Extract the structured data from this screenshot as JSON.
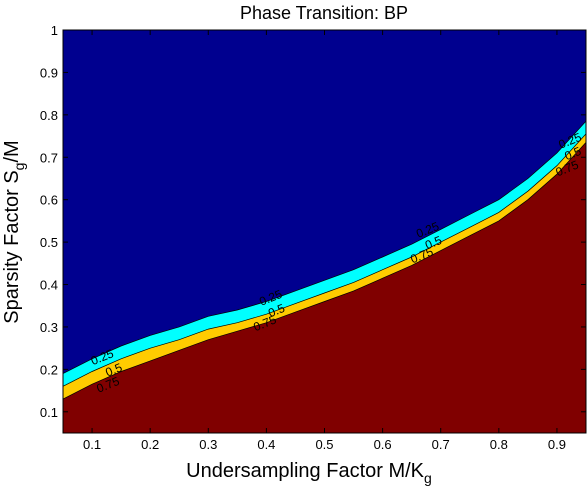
{
  "chart_data": {
    "type": "contour",
    "title": "Phase Transition: BP",
    "xlabel": "Undersampling Factor M/K",
    "xlabel_subscript": "g",
    "ylabel_prefix": "Sparsity Factor S",
    "ylabel_subscript": "g",
    "ylabel_suffix": "/M",
    "xlim": [
      0.05,
      0.95
    ],
    "ylim": [
      0.05,
      1.0
    ],
    "xticks": [
      0.1,
      0.2,
      0.3,
      0.4,
      0.5,
      0.6,
      0.7,
      0.8,
      0.9
    ],
    "yticks": [
      0.1,
      0.2,
      0.3,
      0.4,
      0.5,
      0.6,
      0.7,
      0.8,
      0.9,
      1
    ],
    "grid": false,
    "levels": [
      {
        "label": "0.25",
        "color": "#00ffff"
      },
      {
        "label": "0.5",
        "color": "#ffcc00"
      },
      {
        "label": "0.75",
        "color": "#800000"
      }
    ],
    "background_color": "#00008f",
    "contours": [
      {
        "level": "0.25",
        "x": [
          0.05,
          0.1,
          0.15,
          0.2,
          0.25,
          0.3,
          0.35,
          0.4,
          0.45,
          0.5,
          0.55,
          0.6,
          0.65,
          0.7,
          0.75,
          0.8,
          0.85,
          0.9,
          0.95
        ],
        "y": [
          0.19,
          0.225,
          0.255,
          0.28,
          0.3,
          0.325,
          0.34,
          0.36,
          0.385,
          0.41,
          0.435,
          0.465,
          0.495,
          0.53,
          0.565,
          0.6,
          0.65,
          0.71,
          0.785
        ]
      },
      {
        "level": "0.5",
        "x": [
          0.05,
          0.1,
          0.15,
          0.2,
          0.25,
          0.3,
          0.35,
          0.4,
          0.45,
          0.5,
          0.55,
          0.6,
          0.65,
          0.7,
          0.75,
          0.8,
          0.85,
          0.9,
          0.95
        ],
        "y": [
          0.16,
          0.195,
          0.225,
          0.25,
          0.27,
          0.295,
          0.31,
          0.33,
          0.355,
          0.38,
          0.405,
          0.435,
          0.465,
          0.5,
          0.535,
          0.57,
          0.62,
          0.68,
          0.755
        ]
      },
      {
        "level": "0.75",
        "x": [
          0.05,
          0.1,
          0.15,
          0.2,
          0.25,
          0.3,
          0.35,
          0.4,
          0.45,
          0.5,
          0.55,
          0.6,
          0.65,
          0.7,
          0.75,
          0.8,
          0.85,
          0.9,
          0.95
        ],
        "y": [
          0.13,
          0.165,
          0.195,
          0.22,
          0.245,
          0.27,
          0.29,
          0.31,
          0.335,
          0.36,
          0.385,
          0.415,
          0.445,
          0.48,
          0.515,
          0.55,
          0.6,
          0.66,
          0.735
        ]
      }
    ],
    "contour_labels": [
      {
        "text": "0.25",
        "x": 0.12,
        "y": 0.22
      },
      {
        "text": "0.5",
        "x": 0.14,
        "y": 0.19
      },
      {
        "text": "0.75",
        "x": 0.13,
        "y": 0.155
      },
      {
        "text": "0.25",
        "x": 0.41,
        "y": 0.36
      },
      {
        "text": "0.5",
        "x": 0.42,
        "y": 0.33
      },
      {
        "text": "0.75",
        "x": 0.4,
        "y": 0.3
      },
      {
        "text": "0.25",
        "x": 0.68,
        "y": 0.52
      },
      {
        "text": "0.5",
        "x": 0.69,
        "y": 0.49
      },
      {
        "text": "0.75",
        "x": 0.67,
        "y": 0.46
      },
      {
        "text": "0.25",
        "x": 0.925,
        "y": 0.73
      },
      {
        "text": "0.5",
        "x": 0.93,
        "y": 0.7
      },
      {
        "text": "0.75",
        "x": 0.92,
        "y": 0.665
      }
    ]
  }
}
